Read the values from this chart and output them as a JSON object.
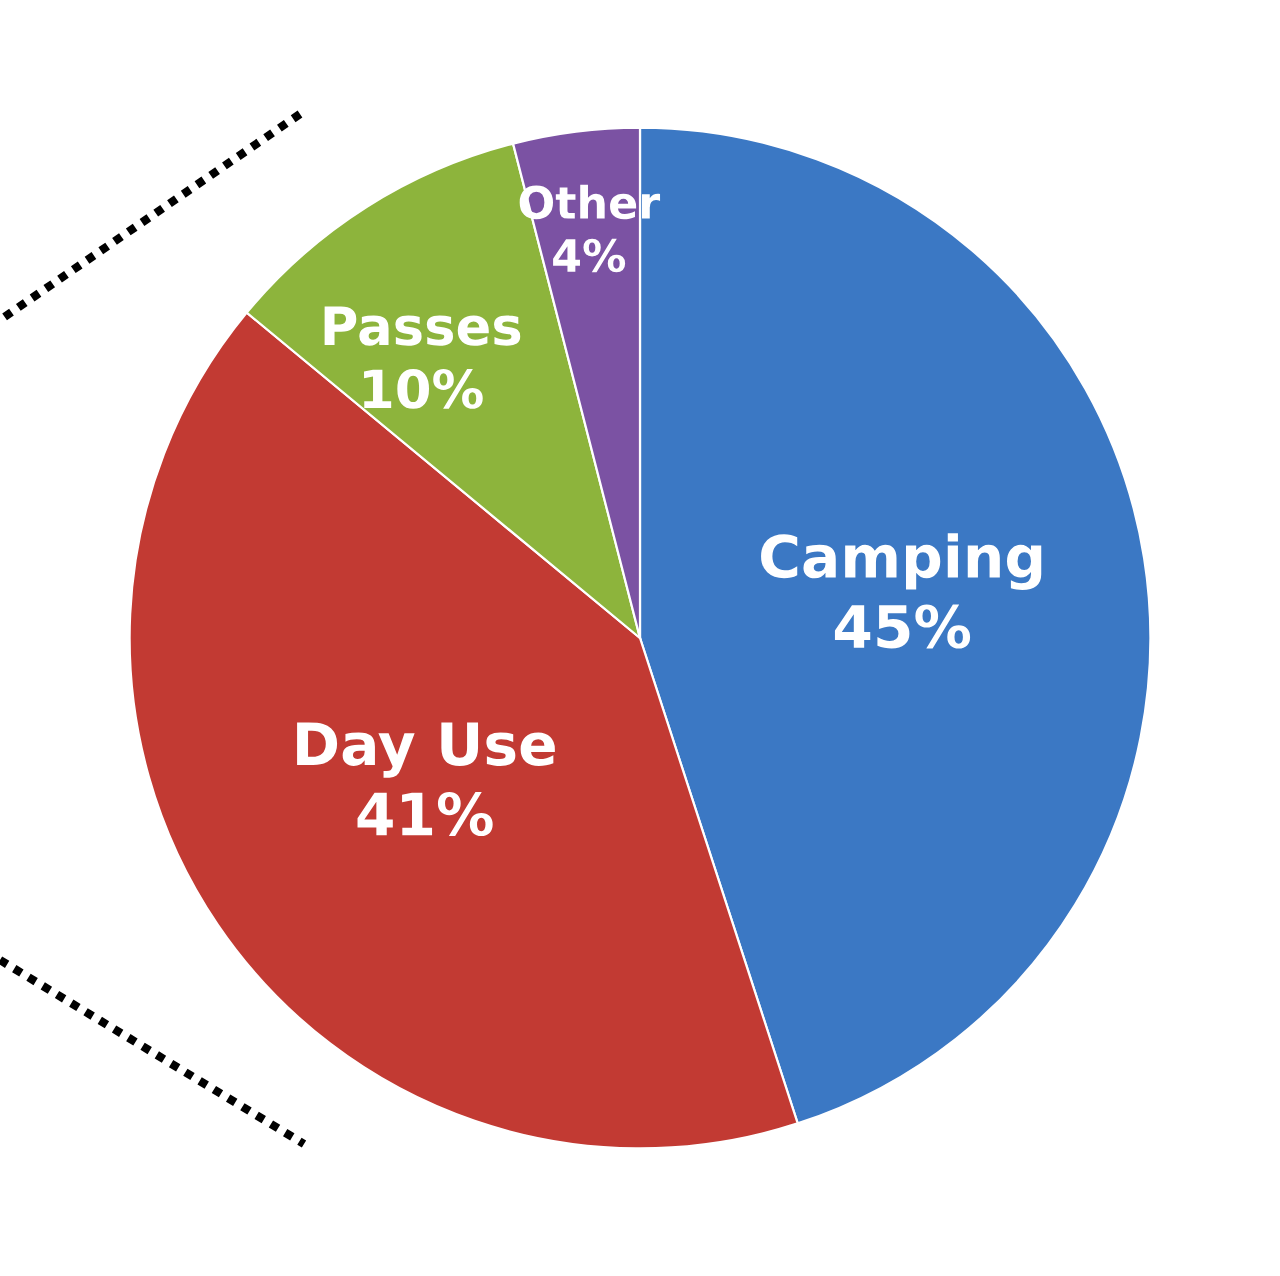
{
  "chart_data": {
    "type": "pie",
    "categories": [
      "Camping",
      "Day Use",
      "Passes",
      "Other"
    ],
    "values": [
      45,
      41,
      10,
      4
    ],
    "colors": [
      "#3b78c4",
      "#c23a33",
      "#8db43c",
      "#7b52a3"
    ],
    "value_labels": [
      "45%",
      "41%",
      "10%",
      "4%"
    ]
  }
}
